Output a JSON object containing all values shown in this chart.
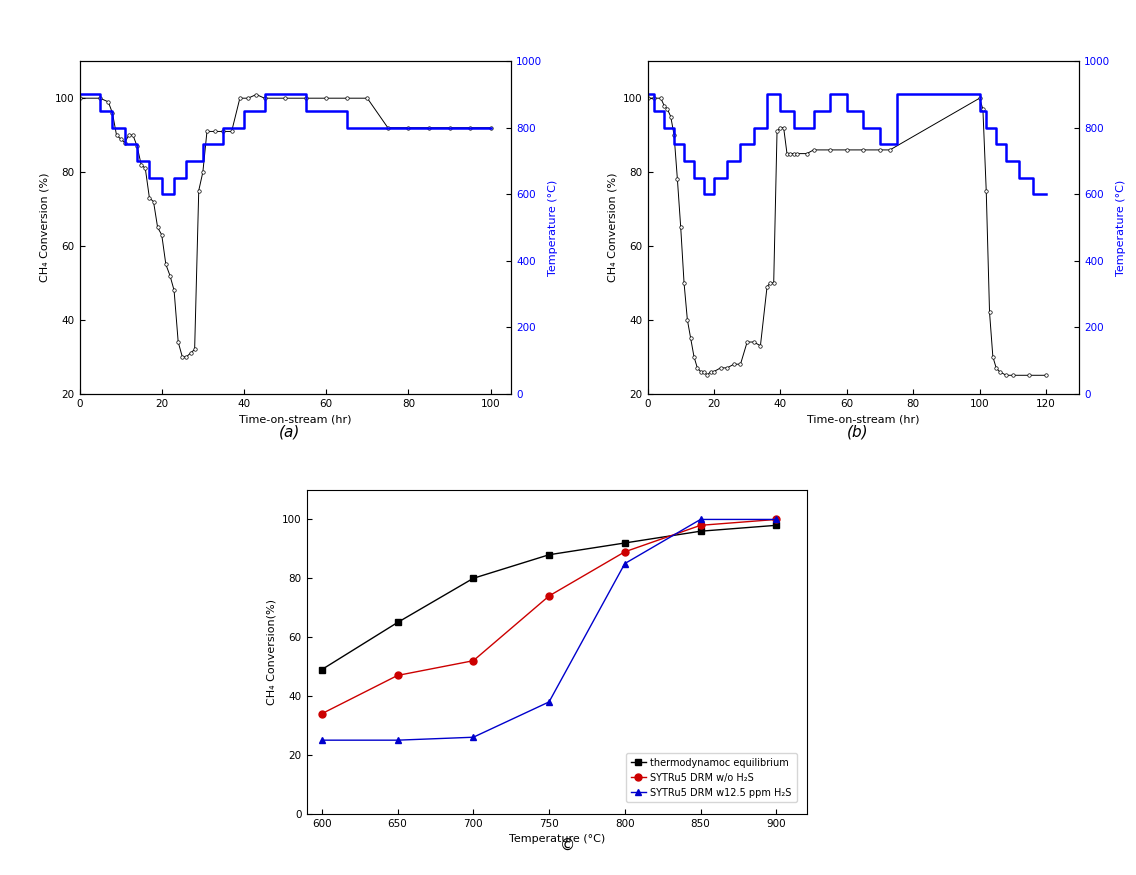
{
  "plot_a": {
    "ch4_x": [
      0,
      5,
      7,
      8,
      9,
      10,
      11,
      12,
      13,
      14,
      15,
      16,
      17,
      18,
      19,
      20,
      21,
      22,
      23,
      24,
      25,
      26,
      27,
      28,
      29,
      30,
      31,
      33,
      35,
      37,
      39,
      41,
      43,
      45,
      50,
      55,
      60,
      65,
      70,
      75,
      80,
      85,
      90,
      95,
      100
    ],
    "ch4_y": [
      100,
      100,
      99,
      96,
      90,
      89,
      88,
      90,
      90,
      87,
      82,
      81,
      73,
      72,
      65,
      63,
      55,
      52,
      48,
      34,
      30,
      30,
      31,
      32,
      75,
      80,
      91,
      91,
      91,
      91,
      100,
      100,
      101,
      100,
      100,
      100,
      100,
      100,
      100,
      92,
      92,
      92,
      92,
      92,
      92
    ],
    "temp_x": [
      0,
      5,
      5,
      8,
      8,
      11,
      11,
      14,
      14,
      17,
      17,
      20,
      20,
      23,
      23,
      26,
      26,
      30,
      30,
      35,
      35,
      40,
      40,
      45,
      45,
      55,
      55,
      65,
      65,
      70,
      70,
      85,
      85,
      100,
      100
    ],
    "temp_y": [
      900,
      900,
      850,
      850,
      800,
      800,
      750,
      750,
      700,
      700,
      650,
      650,
      600,
      600,
      650,
      650,
      700,
      700,
      750,
      750,
      800,
      800,
      850,
      850,
      900,
      900,
      850,
      850,
      800,
      800,
      800,
      800,
      800,
      800,
      800
    ],
    "xlabel": "Time-on-stream (hr)",
    "ylabel_left": "CH₄ Conversion (%)",
    "ylabel_right": "Temperature (°C)",
    "xlim": [
      0,
      105
    ],
    "ylim_left": [
      20,
      110
    ],
    "ylim_right": [
      0,
      1000
    ],
    "xticks": [
      0,
      20,
      40,
      60,
      80,
      100
    ],
    "yticks_left": [
      20,
      40,
      60,
      80,
      100
    ],
    "yticks_right": [
      0,
      200,
      400,
      600,
      800,
      1000
    ]
  },
  "plot_b": {
    "ch4_x": [
      0,
      2,
      4,
      5,
      6,
      7,
      8,
      9,
      10,
      11,
      12,
      13,
      14,
      15,
      16,
      17,
      18,
      19,
      20,
      22,
      24,
      26,
      28,
      30,
      32,
      34,
      36,
      37,
      38,
      39,
      40,
      41,
      42,
      43,
      44,
      45,
      48,
      50,
      55,
      60,
      65,
      70,
      73,
      100,
      101,
      102,
      103,
      104,
      105,
      106,
      108,
      110,
      115,
      120
    ],
    "ch4_y": [
      100,
      100,
      100,
      98,
      97,
      95,
      90,
      78,
      65,
      50,
      40,
      35,
      30,
      27,
      26,
      26,
      25,
      26,
      26,
      27,
      27,
      28,
      28,
      34,
      34,
      33,
      49,
      50,
      50,
      91,
      92,
      92,
      85,
      85,
      85,
      85,
      85,
      86,
      86,
      86,
      86,
      86,
      86,
      100,
      97,
      75,
      42,
      30,
      27,
      26,
      25,
      25,
      25,
      25
    ],
    "temp_x": [
      0,
      2,
      2,
      5,
      5,
      8,
      8,
      11,
      11,
      14,
      14,
      17,
      17,
      20,
      20,
      24,
      24,
      28,
      28,
      32,
      32,
      36,
      36,
      40,
      40,
      44,
      44,
      50,
      50,
      55,
      55,
      60,
      60,
      65,
      65,
      70,
      70,
      75,
      75,
      100,
      100,
      102,
      102,
      105,
      105,
      108,
      108,
      112,
      112,
      116,
      116,
      120
    ],
    "temp_y": [
      900,
      900,
      850,
      850,
      800,
      800,
      750,
      750,
      700,
      700,
      650,
      650,
      600,
      600,
      650,
      650,
      700,
      700,
      750,
      750,
      800,
      800,
      900,
      900,
      850,
      850,
      800,
      800,
      850,
      850,
      900,
      900,
      850,
      850,
      800,
      800,
      750,
      750,
      900,
      900,
      850,
      850,
      800,
      800,
      750,
      750,
      700,
      700,
      650,
      650,
      600,
      600
    ],
    "xlabel": "Time-on-stream (hr)",
    "ylabel_left": "CH₄ Conversion (%)",
    "ylabel_right": "Temperature (°C)",
    "xlim": [
      0,
      130
    ],
    "ylim_left": [
      20,
      110
    ],
    "ylim_right": [
      0,
      1000
    ],
    "xticks": [
      0,
      20,
      40,
      60,
      80,
      100,
      120
    ],
    "yticks_left": [
      20,
      40,
      60,
      80,
      100
    ],
    "yticks_right": [
      0,
      200,
      400,
      600,
      800,
      1000
    ]
  },
  "plot_c": {
    "temp_axis": [
      600,
      650,
      700,
      750,
      800,
      850,
      900
    ],
    "thermo_y": [
      49,
      65,
      80,
      88,
      92,
      96,
      98
    ],
    "no_h2s_y": [
      34,
      47,
      52,
      74,
      89,
      98,
      100
    ],
    "with_h2s_y": [
      25,
      25,
      26,
      38,
      85,
      100,
      100
    ],
    "xlabel": "Temperature (°C)",
    "ylabel": "CH₄ Conversion(%)",
    "xlim": [
      590,
      920
    ],
    "ylim": [
      0,
      110
    ],
    "xticks": [
      600,
      650,
      700,
      750,
      800,
      850,
      900
    ],
    "yticks": [
      0,
      20,
      40,
      60,
      80,
      100
    ],
    "legend": [
      "thermodynamoc equilibrium",
      "SYTRu5 DRM w/o H₂S",
      "SYTRu5 DRM w12.5 ppm H₂S"
    ],
    "thermo_color": "#000000",
    "no_h2s_color": "#cc0000",
    "with_h2s_color": "#0000cc"
  },
  "label_a": "(a)",
  "label_b": "(b)",
  "label_c": "©",
  "bg_color": "#ffffff"
}
